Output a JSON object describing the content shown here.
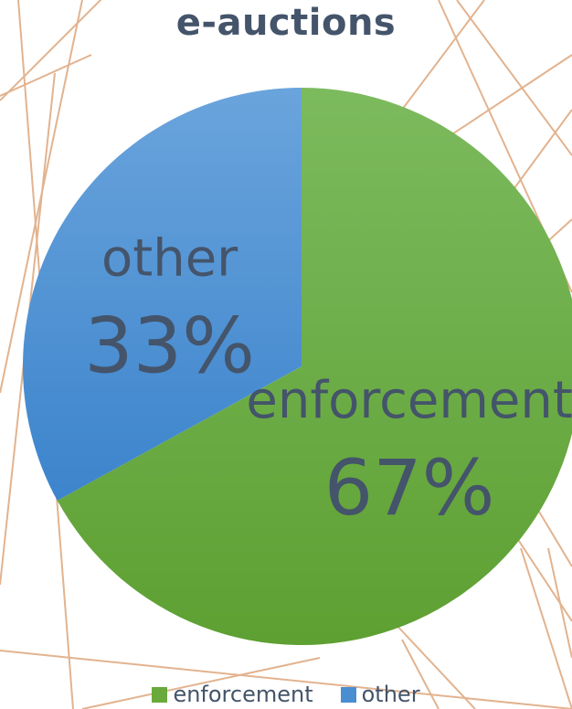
{
  "chart_data": {
    "type": "pie",
    "title": "e-auctions",
    "slices": [
      {
        "label": "enforcement",
        "value": 67,
        "display": "67%",
        "color": "#6aaa3c"
      },
      {
        "label": "other",
        "value": 33,
        "display": "33%",
        "color": "#4a8ed2"
      }
    ],
    "legend": {
      "position": "bottom",
      "items": [
        "enforcement",
        "other"
      ]
    }
  },
  "colors": {
    "text": "#44546a",
    "decoration_lines": "#e2b38f"
  }
}
